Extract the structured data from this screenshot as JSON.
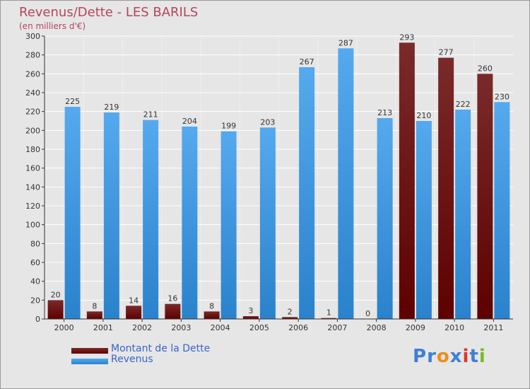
{
  "colors": {
    "debt_top": "#7a2a2a",
    "debt_bottom": "#5e0000",
    "revenue_top": "#55a9ee",
    "revenue_bottom": "#2a82cc",
    "grid": "#ffffff",
    "plot_bg": "#e6e6e6",
    "axis": "#333333",
    "tick_text": "#333333",
    "value_text": "#333333",
    "title": "#b5455f",
    "legend_text": "#3b63c9"
  },
  "logo": {
    "letters": [
      "P",
      "r",
      "o",
      "x",
      "i",
      "t",
      "i"
    ],
    "colors": [
      "#3f7fd6",
      "#3f7fd6",
      "#f08c1a",
      "#3f7fd6",
      "#e0342a",
      "#3f7fd6",
      "#7ab82a"
    ]
  },
  "chart_data": {
    "type": "bar",
    "title": "Revenus/Dette - LES BARILS",
    "subtitle": "(en milliers d'€)",
    "xlabel": "",
    "ylabel": "",
    "ylim": [
      0,
      300
    ],
    "yticks": [
      0,
      20,
      40,
      60,
      80,
      100,
      120,
      140,
      160,
      180,
      200,
      220,
      240,
      260,
      280,
      300
    ],
    "grid": true,
    "legend_position": "bottom-left",
    "categories": [
      "2000",
      "2001",
      "2002",
      "2003",
      "2004",
      "2005",
      "2006",
      "2007",
      "2008",
      "2009",
      "2010",
      "2011"
    ],
    "series": [
      {
        "name": "Montant de la Dette",
        "values": [
          20,
          8,
          14,
          16,
          8,
          3,
          2,
          1,
          0,
          293,
          277,
          260
        ]
      },
      {
        "name": "Revenus",
        "values": [
          225,
          219,
          211,
          204,
          199,
          203,
          267,
          287,
          213,
          210,
          222,
          230
        ]
      }
    ]
  }
}
